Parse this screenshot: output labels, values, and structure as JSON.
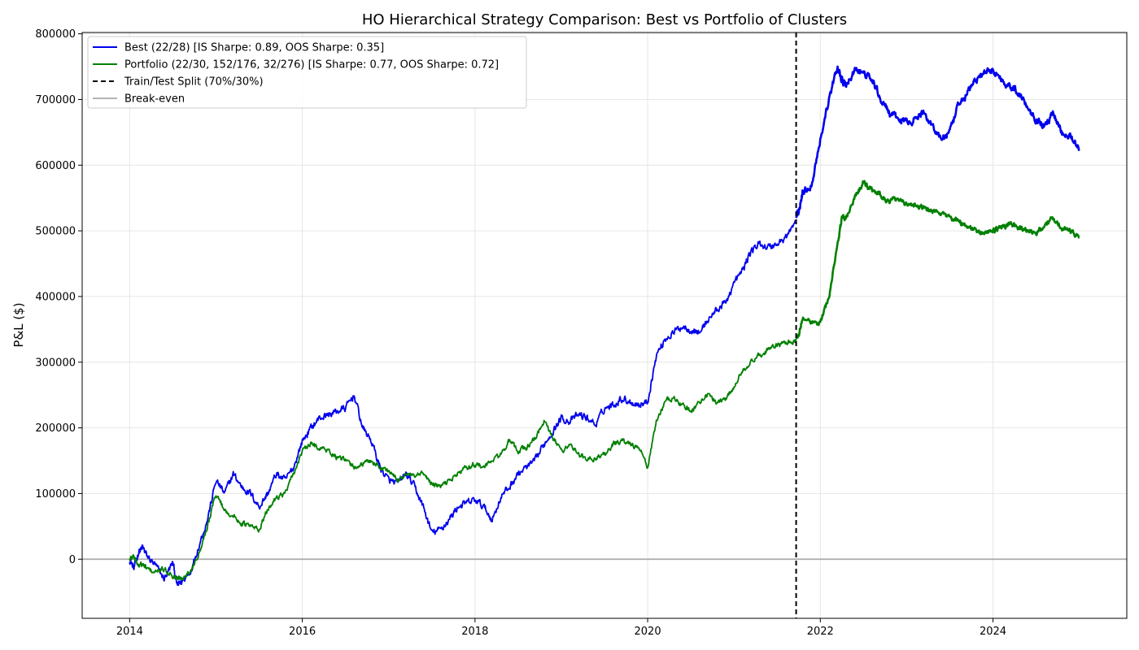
{
  "chart_data": {
    "type": "line",
    "title": "HO Hierarchical Strategy Comparison: Best vs Portfolio of Clusters",
    "xlabel": "",
    "ylabel": "P&L ($)",
    "xlim": [
      2013.45,
      2025.55
    ],
    "ylim": [
      -90000,
      802000
    ],
    "x_ticks": [
      2014,
      2016,
      2018,
      2020,
      2022,
      2024
    ],
    "x_tick_labels": [
      "2014",
      "2016",
      "2018",
      "2020",
      "2022",
      "2024"
    ],
    "y_ticks": [
      0,
      100000,
      200000,
      300000,
      400000,
      500000,
      600000,
      700000,
      800000
    ],
    "y_tick_labels": [
      "0",
      "100000",
      "200000",
      "300000",
      "400000",
      "500000",
      "600000",
      "700000",
      "800000"
    ],
    "grid": true,
    "legend_position": "top-left",
    "split_x": 2021.72,
    "break_even_y": 0,
    "colors": {
      "best": "#0000ee",
      "portfolio": "#008000",
      "split": "#000000",
      "break_even": "#aaaaaa",
      "grid": "#e6e6e6"
    },
    "legend": [
      {
        "key": "best",
        "label": "Best (22/28) [IS Sharpe: 0.89, OOS Sharpe: 0.35]",
        "style": "solid"
      },
      {
        "key": "portfolio",
        "label": "Portfolio (22/30, 152/176, 32/276) [IS Sharpe: 0.77, OOS Sharpe: 0.72]",
        "style": "solid"
      },
      {
        "key": "split",
        "label": "Train/Test Split (70%/30%)",
        "style": "dashed"
      },
      {
        "key": "break_even",
        "label": "Break-even",
        "style": "solid"
      }
    ],
    "series": [
      {
        "name": "Best (22/28) [IS Sharpe: 0.89, OOS Sharpe: 0.35]",
        "key": "best",
        "x": [
          2014.0,
          2014.05,
          2014.1,
          2014.15,
          2014.2,
          2014.3,
          2014.4,
          2014.5,
          2014.55,
          2014.6,
          2014.7,
          2014.8,
          2014.9,
          2015.0,
          2015.1,
          2015.2,
          2015.3,
          2015.4,
          2015.5,
          2015.6,
          2015.7,
          2015.8,
          2015.9,
          2016.0,
          2016.1,
          2016.2,
          2016.3,
          2016.4,
          2016.5,
          2016.6,
          2016.7,
          2016.8,
          2016.9,
          2017.0,
          2017.1,
          2017.2,
          2017.3,
          2017.4,
          2017.5,
          2017.6,
          2017.7,
          2017.8,
          2017.9,
          2018.0,
          2018.1,
          2018.2,
          2018.3,
          2018.4,
          2018.5,
          2018.6,
          2018.7,
          2018.8,
          2018.9,
          2019.0,
          2019.1,
          2019.2,
          2019.3,
          2019.4,
          2019.5,
          2019.6,
          2019.7,
          2019.8,
          2019.9,
          2020.0,
          2020.1,
          2020.2,
          2020.3,
          2020.4,
          2020.5,
          2020.6,
          2020.7,
          2020.8,
          2020.9,
          2021.0,
          2021.1,
          2021.2,
          2021.3,
          2021.4,
          2021.5,
          2021.6,
          2021.7,
          2021.75,
          2021.8,
          2021.9,
          2022.0,
          2022.1,
          2022.2,
          2022.25,
          2022.3,
          2022.4,
          2022.5,
          2022.6,
          2022.7,
          2022.8,
          2022.9,
          2023.0,
          2023.1,
          2023.2,
          2023.3,
          2023.4,
          2023.5,
          2023.6,
          2023.7,
          2023.8,
          2023.9,
          2024.0,
          2024.1,
          2024.2,
          2024.3,
          2024.4,
          2024.5,
          2024.6,
          2024.7,
          2024.8,
          2024.9,
          2025.0
        ],
        "values": [
          0,
          -15000,
          10000,
          18000,
          5000,
          -10000,
          -30000,
          -5000,
          -40000,
          -35000,
          -20000,
          20000,
          60000,
          120000,
          100000,
          130000,
          110000,
          100000,
          80000,
          100000,
          130000,
          120000,
          140000,
          180000,
          200000,
          215000,
          220000,
          225000,
          230000,
          250000,
          200000,
          180000,
          140000,
          120000,
          115000,
          130000,
          110000,
          80000,
          40000,
          45000,
          60000,
          80000,
          85000,
          90000,
          80000,
          60000,
          95000,
          110000,
          130000,
          140000,
          150000,
          175000,
          195000,
          215000,
          210000,
          220000,
          215000,
          205000,
          230000,
          235000,
          245000,
          240000,
          235000,
          240000,
          310000,
          335000,
          345000,
          355000,
          350000,
          345000,
          365000,
          380000,
          390000,
          420000,
          440000,
          470000,
          480000,
          475000,
          480000,
          490000,
          510000,
          530000,
          560000,
          570000,
          640000,
          700000,
          750000,
          730000,
          720000,
          745000,
          740000,
          730000,
          700000,
          680000,
          670000,
          665000,
          670000,
          680000,
          660000,
          640000,
          650000,
          690000,
          710000,
          730000,
          740000,
          745000,
          730000,
          720000,
          710000,
          690000,
          670000,
          660000,
          680000,
          650000,
          645000,
          625000
        ]
      },
      {
        "name": "Portfolio (22/30, 152/176, 32/276) [IS Sharpe: 0.77, OOS Sharpe: 0.72]",
        "key": "portfolio",
        "x": [
          2014.0,
          2014.05,
          2014.1,
          2014.15,
          2014.2,
          2014.3,
          2014.4,
          2014.5,
          2014.55,
          2014.6,
          2014.7,
          2014.8,
          2014.9,
          2015.0,
          2015.1,
          2015.2,
          2015.3,
          2015.4,
          2015.5,
          2015.6,
          2015.7,
          2015.8,
          2015.9,
          2016.0,
          2016.1,
          2016.2,
          2016.3,
          2016.4,
          2016.5,
          2016.6,
          2016.7,
          2016.8,
          2016.9,
          2017.0,
          2017.1,
          2017.2,
          2017.3,
          2017.4,
          2017.5,
          2017.6,
          2017.7,
          2017.8,
          2017.9,
          2018.0,
          2018.1,
          2018.2,
          2018.3,
          2018.4,
          2018.5,
          2018.6,
          2018.7,
          2018.8,
          2018.9,
          2019.0,
          2019.1,
          2019.2,
          2019.3,
          2019.4,
          2019.5,
          2019.6,
          2019.7,
          2019.8,
          2019.9,
          2020.0,
          2020.1,
          2020.2,
          2020.3,
          2020.4,
          2020.5,
          2020.6,
          2020.7,
          2020.8,
          2020.9,
          2021.0,
          2021.1,
          2021.2,
          2021.3,
          2021.4,
          2021.5,
          2021.6,
          2021.7,
          2021.75,
          2021.8,
          2021.9,
          2022.0,
          2022.1,
          2022.2,
          2022.25,
          2022.3,
          2022.4,
          2022.5,
          2022.6,
          2022.7,
          2022.8,
          2022.9,
          2023.0,
          2023.1,
          2023.2,
          2023.3,
          2023.4,
          2023.5,
          2023.6,
          2023.7,
          2023.8,
          2023.9,
          2024.0,
          2024.1,
          2024.2,
          2024.3,
          2024.4,
          2024.5,
          2024.6,
          2024.7,
          2024.8,
          2024.9,
          2025.0
        ],
        "values": [
          0,
          5000,
          -10000,
          -8000,
          -15000,
          -20000,
          -15000,
          -25000,
          -30000,
          -28000,
          -20000,
          10000,
          50000,
          100000,
          75000,
          65000,
          55000,
          50000,
          45000,
          75000,
          95000,
          100000,
          130000,
          165000,
          175000,
          170000,
          165000,
          155000,
          150000,
          140000,
          145000,
          150000,
          140000,
          135000,
          120000,
          130000,
          125000,
          130000,
          115000,
          110000,
          120000,
          130000,
          140000,
          145000,
          140000,
          150000,
          160000,
          180000,
          165000,
          170000,
          185000,
          210000,
          185000,
          165000,
          175000,
          160000,
          150000,
          155000,
          160000,
          175000,
          180000,
          175000,
          170000,
          140000,
          210000,
          240000,
          245000,
          235000,
          225000,
          240000,
          250000,
          240000,
          245000,
          260000,
          290000,
          300000,
          310000,
          320000,
          325000,
          330000,
          330000,
          340000,
          370000,
          360000,
          360000,
          400000,
          480000,
          520000,
          520000,
          550000,
          575000,
          560000,
          555000,
          545000,
          550000,
          540000,
          540000,
          535000,
          530000,
          525000,
          520000,
          515000,
          505000,
          500000,
          495000,
          500000,
          505000,
          510000,
          505000,
          500000,
          495000,
          510000,
          520000,
          505000,
          500000,
          490000
        ]
      }
    ]
  }
}
